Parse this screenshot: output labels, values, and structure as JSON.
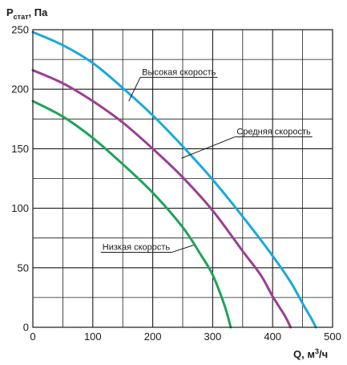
{
  "chart_data": {
    "type": "line",
    "title": "",
    "ylabel": {
      "main": "P",
      "sub": "стат",
      "rest": ", Па"
    },
    "xlabel": {
      "main": "Q, м",
      "sup": "3",
      "rest": "/ч"
    },
    "xlim": [
      0,
      500
    ],
    "ylim": [
      0,
      250
    ],
    "x_ticks": [
      0,
      100,
      200,
      300,
      400,
      500
    ],
    "y_ticks": [
      0,
      50,
      100,
      150,
      200,
      250
    ],
    "x_minor_step": 50,
    "y_minor_step": 25,
    "grid": true,
    "legend": "none",
    "series": [
      {
        "name": "Высокая скорость",
        "color": "#1aa9db",
        "x": [
          0,
          50,
          100,
          150,
          200,
          250,
          300,
          350,
          400,
          430,
          450,
          465,
          472
        ],
        "y": [
          248,
          237,
          222,
          201,
          178,
          152,
          124,
          93,
          60,
          38,
          20,
          7,
          0
        ]
      },
      {
        "name": "Средняя скорость",
        "color": "#9a3f8e",
        "x": [
          0,
          50,
          100,
          150,
          200,
          250,
          300,
          350,
          380,
          400,
          420,
          430
        ],
        "y": [
          216,
          205,
          190,
          172,
          150,
          126,
          98,
          64,
          44,
          26,
          10,
          0
        ]
      },
      {
        "name": "Низкая скорость",
        "color": "#1fa35a",
        "x": [
          0,
          50,
          100,
          150,
          200,
          250,
          280,
          300,
          320,
          330
        ],
        "y": [
          190,
          177,
          159,
          137,
          113,
          84,
          61,
          44,
          18,
          0
        ]
      }
    ],
    "annotations": [
      {
        "text": "Высокая скорость",
        "series": 0,
        "label_at": [
          182,
          212
        ],
        "anchor_at": [
          160,
          190
        ]
      },
      {
        "text": "Средняя скорость",
        "series": 1,
        "label_at": [
          340,
          162
        ],
        "anchor_at": [
          248,
          142
        ]
      },
      {
        "text": "Низкая скорость",
        "series": 2,
        "label_at": [
          116,
          65
        ],
        "anchor_at": [
          268,
          69
        ]
      }
    ]
  }
}
